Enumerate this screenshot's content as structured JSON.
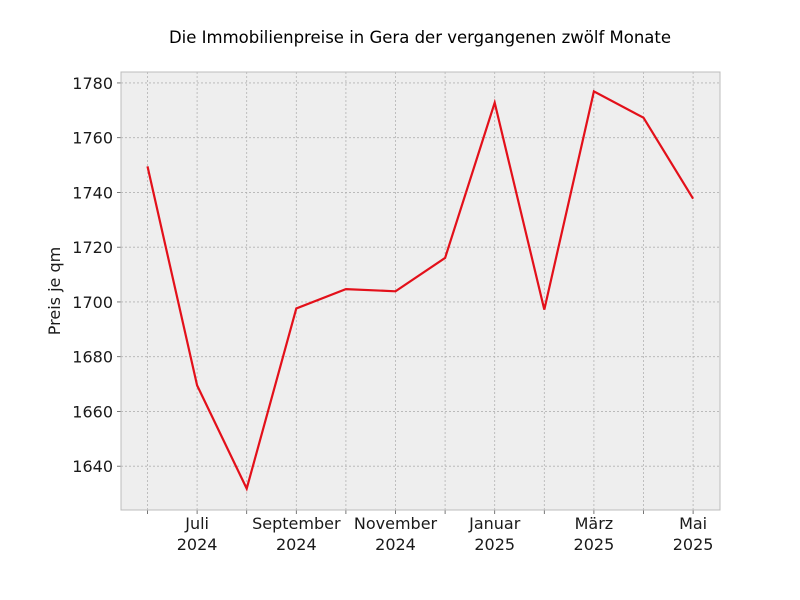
{
  "chart_data": {
    "type": "line",
    "title": "Die Immobilienpreise in Gera der vergangenen zwölf Monate",
    "xlabel": "",
    "ylabel": "Preis je qm",
    "x": [
      "2024-06",
      "2024-07",
      "2024-08",
      "2024-09",
      "2024-10",
      "2024-11",
      "2024-12",
      "2025-01",
      "2025-02",
      "2025-03",
      "2025-04",
      "2025-05"
    ],
    "x_tick_labels": [
      {
        "x": "2024-07",
        "month": "Juli",
        "year": "2024"
      },
      {
        "x": "2024-09",
        "month": "September",
        "year": "2024"
      },
      {
        "x": "2024-11",
        "month": "November",
        "year": "2024"
      },
      {
        "x": "2025-01",
        "month": "Januar",
        "year": "2025"
      },
      {
        "x": "2025-03",
        "month": "März",
        "year": "2025"
      },
      {
        "x": "2025-05",
        "month": "Mai",
        "year": "2025"
      }
    ],
    "series": [
      {
        "color": "#e3101a",
        "values": [
          1749.5,
          1669.5,
          1631.8,
          1697.6,
          1704.7,
          1703.9,
          1716.1,
          1772.8,
          1697.2,
          1776.9,
          1767.3,
          1737.7
        ]
      }
    ],
    "ylim": [
      1624,
      1784
    ],
    "yticks": [
      1640,
      1660,
      1680,
      1700,
      1720,
      1740,
      1760,
      1780
    ],
    "grid": true,
    "background": "#eeeeee"
  }
}
